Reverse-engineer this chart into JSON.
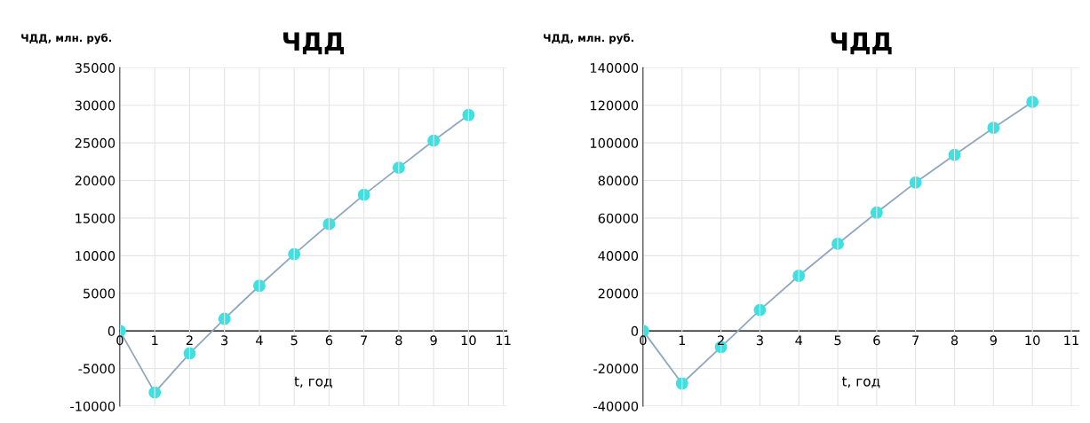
{
  "chart_data": [
    {
      "type": "line",
      "title": "ЧДД",
      "xlabel": "t, год",
      "ylabel": "ЧДД, млн. руб.",
      "x": [
        0,
        1,
        2,
        3,
        4,
        5,
        6,
        7,
        8,
        9,
        10
      ],
      "series": [
        {
          "color": "#40e0e0",
          "values": [
            0,
            -8200,
            -3000,
            1600,
            6000,
            10200,
            14200,
            18100,
            21700,
            25300,
            28700
          ]
        }
      ],
      "xlim": [
        0,
        11.1
      ],
      "xticks": [
        0,
        1,
        2,
        3,
        4,
        5,
        6,
        7,
        8,
        9,
        10,
        11
      ],
      "ylim": [
        -10000,
        35000
      ],
      "yticks": [
        -10000,
        -5000,
        0,
        5000,
        10000,
        15000,
        20000,
        25000,
        30000,
        35000
      ],
      "grid": true,
      "marker": "circle",
      "line_style": "solid"
    },
    {
      "type": "line",
      "title": "ЧДД",
      "xlabel": "t, год",
      "ylabel": "ЧДД, млн. руб.",
      "x": [
        0,
        1,
        2,
        3,
        4,
        5,
        6,
        7,
        8,
        9,
        10
      ],
      "series": [
        {
          "color": "#40e0e0",
          "values": [
            0,
            -28000,
            -8600,
            11100,
            29300,
            46300,
            62900,
            78900,
            93600,
            108000,
            121800
          ]
        }
      ],
      "xlim": [
        0,
        11.2
      ],
      "xticks": [
        0,
        1,
        2,
        3,
        4,
        5,
        6,
        7,
        8,
        9,
        10,
        11
      ],
      "ylim": [
        -40000,
        140000
      ],
      "yticks": [
        -40000,
        -20000,
        0,
        20000,
        40000,
        60000,
        80000,
        100000,
        120000,
        140000
      ],
      "grid": true,
      "marker": "circle",
      "line_style": "solid"
    }
  ]
}
